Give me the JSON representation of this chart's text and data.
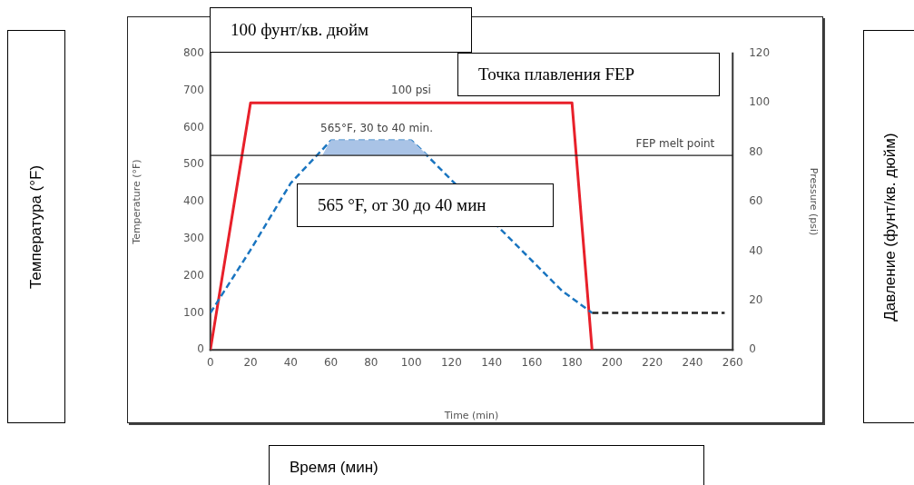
{
  "chart_data": {
    "type": "line",
    "xlabel": "Time (min)",
    "ylabel": "Temperature (°F)",
    "y2label": "Pressure (psi)",
    "xlim": [
      0,
      260
    ],
    "xticks": [
      0,
      20,
      40,
      60,
      80,
      100,
      120,
      140,
      160,
      180,
      200,
      220,
      240,
      260
    ],
    "ylim": [
      0,
      800
    ],
    "yticks": [
      0,
      100,
      200,
      300,
      400,
      500,
      600,
      700,
      800
    ],
    "y2lim": [
      0,
      120
    ],
    "y2ticks": [
      0,
      20,
      40,
      60,
      80,
      100,
      120
    ],
    "grid": false,
    "legend": false,
    "marker": "none",
    "series": [
      {
        "type": "area",
        "color": "#a9c3e6",
        "x": [
          56,
          60,
          100,
          108
        ],
        "values": [
          525,
          565,
          565,
          525
        ]
      },
      {
        "type": "line",
        "color": "#1a75c0",
        "line_style": "dashed",
        "x": [
          0,
          20,
          40,
          60,
          100,
          105,
          175,
          190
        ],
        "values": [
          100,
          270,
          450,
          565,
          565,
          540,
          160,
          100
        ]
      },
      {
        "type": "line",
        "color": "#222222",
        "line_style": "dashed",
        "x": [
          190,
          256
        ],
        "values": [
          100,
          100
        ]
      },
      {
        "type": "line",
        "color": "#e8202a",
        "line_style": "solid",
        "axis": "y2",
        "x": [
          0,
          20,
          180,
          190
        ],
        "values": [
          0,
          100,
          100,
          0
        ]
      }
    ],
    "ref_lines": [
      {
        "axis": "y",
        "value": 525,
        "label": "FEP melt point",
        "color": "#222222"
      }
    ],
    "annotations": [
      "100 psi",
      "565°F, 30 to 40 min.",
      "100 фунт/кв. дюйм",
      "Точка плавления FEP",
      "565 °F, от 30 до 40 мин",
      "Температура (°F)",
      "Давление (фунт/кв. дюйм)",
      "Время (мин)"
    ]
  }
}
